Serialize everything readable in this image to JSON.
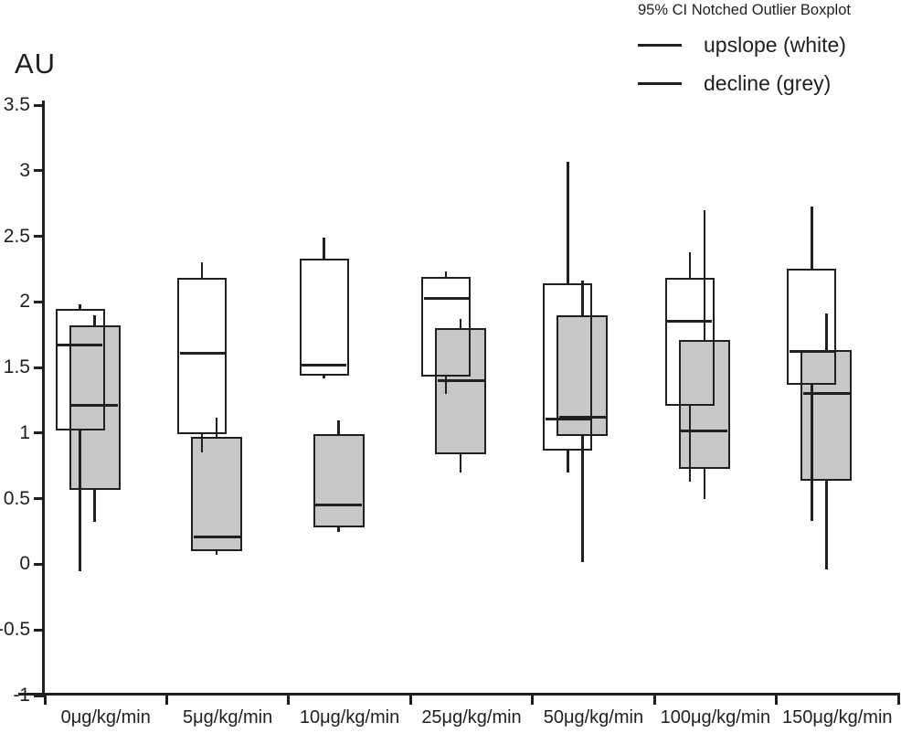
{
  "page": {
    "background": "#ffffff"
  },
  "chart_data": {
    "type": "boxplot",
    "title": "AU",
    "ylabel": "AU",
    "xlabel": "",
    "ylim": [
      -1,
      3.5
    ],
    "grid": false,
    "y_ticks": [
      "3.5",
      "3",
      "2.5",
      "2",
      "1.5",
      "1",
      "0.5",
      "0",
      "-0.5",
      "-1"
    ],
    "categories": [
      "0μg/kg/min",
      "5μg/kg/min",
      "10μg/kg/min",
      "25μg/kg/min",
      "50μg/kg/min",
      "100μg/kg/min",
      "150μg/kg/min"
    ],
    "legend": {
      "title": "95% CI Notched Outlier Boxplot",
      "position": "top-right"
    },
    "colors": {
      "line": "#1f1f1f",
      "grey_fill": "#c5c7c9",
      "white_fill": "#ffffff"
    },
    "series": [
      {
        "name": "upslope (white)",
        "key": "upslope",
        "fill": "white",
        "boxes": [
          {
            "low": -0.05,
            "q1": 1.02,
            "median": 1.67,
            "q3": 1.95,
            "high": 1.98
          },
          {
            "low": 0.85,
            "q1": 0.99,
            "median": 1.61,
            "q3": 2.18,
            "high": 2.3
          },
          {
            "low": 1.42,
            "q1": 1.44,
            "median": 1.52,
            "q3": 2.33,
            "high": 2.49
          },
          {
            "low": 1.3,
            "q1": 1.43,
            "median": 2.03,
            "q3": 2.19,
            "high": 2.23
          },
          {
            "low": 0.7,
            "q1": 0.87,
            "median": 1.11,
            "q3": 2.14,
            "high": 3.07
          },
          {
            "low": 0.63,
            "q1": 1.21,
            "median": 1.85,
            "q3": 2.18,
            "high": 2.38
          },
          {
            "low": 0.33,
            "q1": 1.37,
            "median": 1.62,
            "q3": 2.25,
            "high": 2.73
          }
        ]
      },
      {
        "name": "decline (grey)",
        "key": "decline",
        "fill": "grey",
        "boxes": [
          {
            "low": 0.32,
            "q1": 0.57,
            "median": 1.21,
            "q3": 1.82,
            "high": 1.9
          },
          {
            "low": 0.07,
            "q1": 0.1,
            "median": 0.21,
            "q3": 0.97,
            "high": 1.12
          },
          {
            "low": 0.25,
            "q1": 0.28,
            "median": 0.45,
            "q3": 0.99,
            "high": 1.1
          },
          {
            "low": 0.7,
            "q1": 0.84,
            "median": 1.4,
            "q3": 1.8,
            "high": 1.87
          },
          {
            "low": 0.02,
            "q1": 0.98,
            "median": 1.12,
            "q3": 1.9,
            "high": 2.16
          },
          {
            "low": 0.5,
            "q1": 0.73,
            "median": 1.02,
            "q3": 1.71,
            "high": 2.7
          },
          {
            "low": -0.04,
            "q1": 0.64,
            "median": 1.3,
            "q3": 1.63,
            "high": 1.91
          }
        ]
      }
    ]
  }
}
